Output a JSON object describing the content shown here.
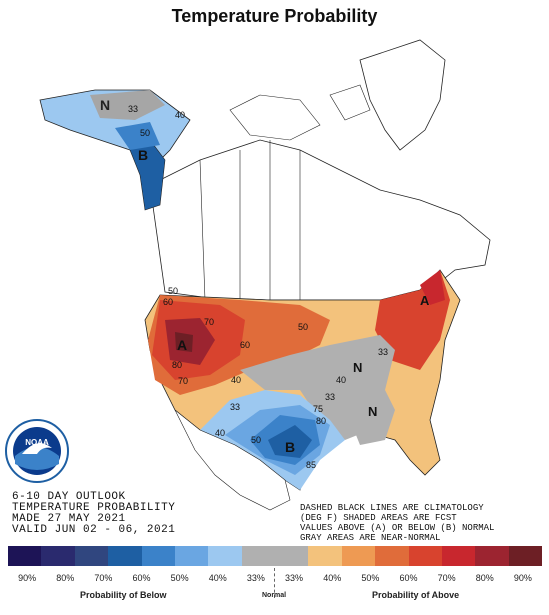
{
  "title": "Temperature Probability",
  "outlook_lines": [
    "6-10 DAY OUTLOOK",
    "TEMPERATURE PROBABILITY",
    "MADE  27 MAY 2021",
    "VALID  JUN 02 - 06, 2021"
  ],
  "note_lines": [
    "DASHED BLACK LINES ARE CLIMATOLOGY",
    "(DEG F) SHADED AREAS ARE FCST",
    "VALUES ABOVE (A) OR BELOW (B) NORMAL",
    "GRAY AREAS ARE NEAR-NORMAL"
  ],
  "map_labels": {
    "alaska_n": "N",
    "alaska_b": "B",
    "west_a": "A",
    "east_a": "A",
    "south_b": "B",
    "center_n": "N",
    "southeast_n": "N",
    "alaska_40": "40",
    "alaska_50": "50",
    "alaska_33": "33",
    "w_80": "80",
    "w_70": "70",
    "w_60": "60",
    "w_50": "50",
    "c_60": "60",
    "c_40": "40",
    "c_33": "33",
    "e_50": "50",
    "e_40": "40",
    "e_33": "33",
    "s_50": "50",
    "s_40": "40",
    "s_33": "33",
    "d_70": "70",
    "d_75": "75",
    "d_80": "80",
    "d_85": "85"
  },
  "legend": {
    "colors": [
      "#1d1456",
      "#2a2a6e",
      "#30467f",
      "#1e5fa3",
      "#3b82c9",
      "#6aa6e2",
      "#9cc8f0",
      "#b0b0b0",
      "#b0b0b0",
      "#f3c27c",
      "#ee9a53",
      "#e06c3a",
      "#d8432e",
      "#c8272e",
      "#9c2430",
      "#6d1f25"
    ],
    "ticks": [
      "90%",
      "80%",
      "70%",
      "60%",
      "50%",
      "40%",
      "33%",
      "33%",
      "40%",
      "50%",
      "60%",
      "70%",
      "80%",
      "90%"
    ],
    "below_caption": "Probability of Below",
    "normal_caption": "Normal",
    "above_caption": "Probability of Above"
  },
  "logo_text": "NOAA"
}
